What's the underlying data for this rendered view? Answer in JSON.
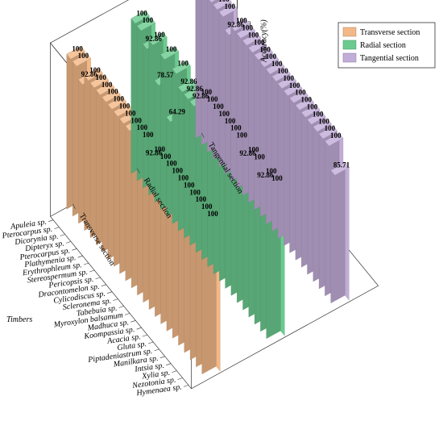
{
  "chart_data": {
    "type": "bar",
    "zlabel": "Accuracy(%)",
    "ylabel": "Timbers",
    "zlim": [
      0,
      100
    ],
    "zticks": [
      0,
      20,
      40,
      60,
      80,
      100
    ],
    "categories": [
      "Apuleia sp.",
      "Pterocarpus sp.",
      "Dicorynia sp.",
      "Dipteryx sp.",
      "Pterocarpus sp.",
      "Plathymenia sp.",
      "Erythrophleum sp.",
      "Stereospermum sp.",
      "Pericopsis sp.",
      "Dracontomelon sp.",
      "Cylicodiscus sp.",
      "Scleronema sp.",
      "Tabebuia sp.",
      "Myroxylon balsamum",
      "Madhuca sp.",
      "Koompassia sp.",
      "Acacia sp.",
      "Gluta sp.",
      "Piptadeniastrum sp.",
      "Manilkara sp.",
      "Intsia sp.",
      "Xylia sp.",
      "Nezotonia sp.",
      "Hymenaea sp."
    ],
    "series": [
      {
        "name": "Transverse section",
        "color": "#f3b887",
        "values": [
          100,
          100,
          92.86,
          100,
          100,
          100,
          100,
          100,
          100,
          100,
          100,
          100,
          100,
          92.86,
          100,
          100,
          100,
          100,
          100,
          100,
          100,
          100,
          100,
          100
        ]
      },
      {
        "name": "Radial section",
        "color": "#6bcb8f",
        "values": [
          100,
          100,
          92.86,
          100,
          78.57,
          100,
          64.29,
          100,
          92.86,
          92.86,
          92.86,
          100,
          100,
          100,
          100,
          100,
          100,
          100,
          92.86,
          100,
          100,
          92.86,
          100,
          100
        ]
      },
      {
        "name": "Tangential section",
        "color": "#c2add8",
        "values": [
          100,
          100,
          100,
          100,
          100,
          92.86,
          100,
          100,
          100,
          100,
          100,
          100,
          100,
          100,
          100,
          100,
          100,
          100,
          100,
          100,
          100,
          100,
          100,
          85.71
        ]
      }
    ],
    "legend_position": "top-right",
    "grid": false
  }
}
